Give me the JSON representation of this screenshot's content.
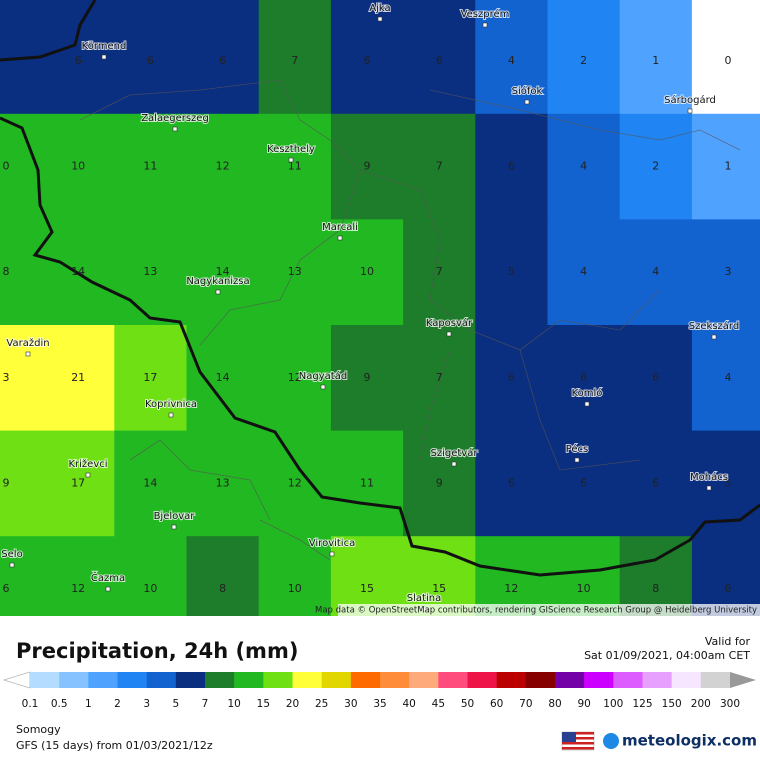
{
  "map": {
    "attribution": "Map data © OpenStreetMap contributors, rendering GIScience Research Group @ Heidelberg University",
    "grid": [
      [
        null,
        6,
        6,
        6,
        7,
        6,
        6,
        4,
        2,
        1,
        0
      ],
      [
        0,
        10,
        11,
        12,
        11,
        9,
        7,
        6,
        4,
        2,
        1
      ],
      [
        8,
        14,
        13,
        14,
        13,
        10,
        7,
        5,
        4,
        4,
        3
      ],
      [
        3,
        21,
        17,
        14,
        12,
        9,
        7,
        6,
        6,
        6,
        4
      ],
      [
        9,
        17,
        14,
        13,
        12,
        11,
        9,
        6,
        6,
        6,
        5
      ],
      [
        6,
        12,
        10,
        8,
        10,
        15,
        15,
        12,
        10,
        8,
        6
      ]
    ],
    "cities": [
      {
        "name": "Ajka"
      },
      {
        "name": "Veszprém"
      },
      {
        "name": "Körmend"
      },
      {
        "name": "Siófok"
      },
      {
        "name": "Sárbogárd"
      },
      {
        "name": "Zalaegerszeg"
      },
      {
        "name": "Keszthely"
      },
      {
        "name": "Marcali"
      },
      {
        "name": "Nagykanizsa"
      },
      {
        "name": "Kaposvár"
      },
      {
        "name": "Szekszárd"
      },
      {
        "name": "Varaždin"
      },
      {
        "name": "Nagyatád"
      },
      {
        "name": "Komló"
      },
      {
        "name": "Koprivnica"
      },
      {
        "name": "Pécs"
      },
      {
        "name": "Szigetvár"
      },
      {
        "name": "Mohács"
      },
      {
        "name": "Križevci"
      },
      {
        "name": "Bjelovar"
      },
      {
        "name": "Virovitica"
      },
      {
        "name": "Selo"
      },
      {
        "name": "Čazma"
      },
      {
        "name": "Slatina"
      }
    ]
  },
  "header": {
    "title": "Precipitation, 24h (mm)",
    "valid_label": "Valid for",
    "valid_time": "Sat 01/09/2021, 04:00am CET"
  },
  "legend": {
    "labels": [
      0.1,
      0.5,
      1,
      2,
      3,
      5,
      7,
      10,
      15,
      20,
      25,
      30,
      35,
      40,
      45,
      50,
      60,
      70,
      80,
      90,
      100,
      125,
      150,
      200,
      300
    ],
    "colors": [
      "#b4dcff",
      "#86c2ff",
      "#4fa3ff",
      "#2084f2",
      "#1262cf",
      "#0a2e80",
      "#1d7d2a",
      "#22b822",
      "#6ee014",
      "#ffff3a",
      "#e2d600",
      "#ff6a00",
      "#ff8c38",
      "#ffaa7a",
      "#ff4c7c",
      "#ee1448",
      "#bb0000",
      "#860000",
      "#7400a8",
      "#cc00ff",
      "#dd5cff",
      "#e8a0ff",
      "#f6e6ff",
      "#d2d2d2"
    ]
  },
  "footer": {
    "region": "Somogy",
    "model": "GFS (15 days) from 01/03/2021/12z",
    "brand": "meteologix.com"
  }
}
